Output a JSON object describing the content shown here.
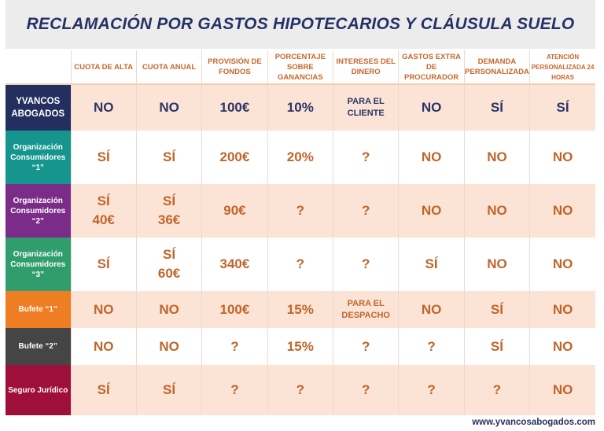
{
  "title": "RECLAMACIÓN POR GASTOS HIPOTECARIOS Y CLÁUSULA SUELO",
  "columns": [
    "CUOTA DE ALTA",
    "CUOTA ANUAL",
    "PROVISIÓN DE FONDOS",
    "PORCENTAJE SOBRE GANANCIAS",
    "INTERESES DEL DINERO",
    "GASTOS EXTRA DE PROCURADOR",
    "DEMANDA PERSONALIZADA",
    "ATENCIÓN PERSONALIZADA 24 HORAS"
  ],
  "rows": [
    {
      "label": "YVANCOS ABOGADOS",
      "color": "#232f5f",
      "values": [
        "NO",
        "NO",
        "100€",
        "10%",
        "PARA EL CLIENTE",
        "NO",
        "SÍ",
        "SÍ"
      ]
    },
    {
      "label": "Organización Consumidores “1”",
      "color": "#15958e",
      "values": [
        "SÍ",
        "SÍ",
        "200€",
        "20%",
        "?",
        "NO",
        "NO",
        "NO"
      ]
    },
    {
      "label": "Organización Consumidores “2”",
      "color": "#7a2c88",
      "values": [
        "SÍ 40€",
        "SÍ 36€",
        "90€",
        "?",
        "?",
        "NO",
        "NO",
        "NO"
      ]
    },
    {
      "label": "Organización Consumidores “3”",
      "color": "#2f9d6c",
      "values": [
        "SÍ",
        "SÍ 60€",
        "340€",
        "?",
        "?",
        "SÍ",
        "NO",
        "NO"
      ]
    },
    {
      "label": "Bufete “1”",
      "color": "#ee7d23",
      "values": [
        "NO",
        "NO",
        "100€",
        "15%",
        "PARA EL DESPACHO",
        "NO",
        "SÍ",
        "NO"
      ]
    },
    {
      "label": "Bufete “2”",
      "color": "#454545",
      "values": [
        "NO",
        "NO",
        "?",
        "15%",
        "?",
        "?",
        "SÍ",
        "NO"
      ]
    },
    {
      "label": "Seguro Jurídico",
      "color": "#9e0f3b",
      "values": [
        "SÍ",
        "SÍ",
        "?",
        "?",
        "?",
        "?",
        "?",
        "NO"
      ]
    }
  ],
  "footer": "www.yvancosabogados.com"
}
